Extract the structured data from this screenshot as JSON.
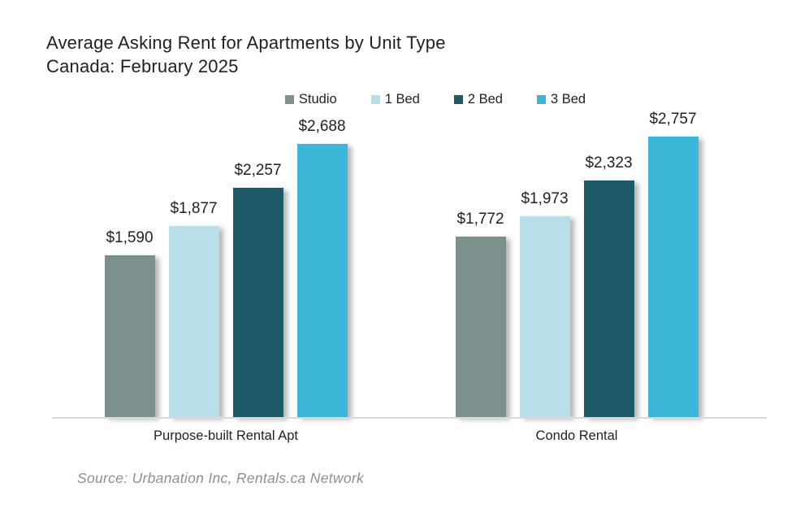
{
  "title": {
    "line1": "Average Asking Rent for Apartments by Unit Type",
    "line2": "Canada: February 2025"
  },
  "source": "Source: Urbanation Inc, Rentals.ca Network",
  "colors": {
    "studio": "#7c908e",
    "one_bed": "#b9e0e8",
    "two_bed": "#1e5968",
    "three_bed": "#3db7d8",
    "axis_line": "#d9d9d9",
    "title_text": "#221f20",
    "source_text": "#8e8e90"
  },
  "chart_data": {
    "type": "bar",
    "title": "Average Asking Rent for Apartments by Unit Type Canada: February 2025",
    "categories": [
      "Purpose-built Rental Apt",
      "Condo Rental"
    ],
    "series": [
      {
        "name": "Studio",
        "color": "#7c908e",
        "values": [
          1590,
          1772
        ],
        "labels": [
          "$1,590",
          "$1,772"
        ]
      },
      {
        "name": "1 Bed",
        "color": "#b9e0e8",
        "values": [
          1877,
          1973
        ],
        "labels": [
          "$1,877",
          "$1,973"
        ]
      },
      {
        "name": "2 Bed",
        "color": "#1e5968",
        "values": [
          2257,
          2323
        ],
        "labels": [
          "$2,257",
          "$2,323"
        ]
      },
      {
        "name": "3 Bed",
        "color": "#3db7d8",
        "values": [
          2688,
          2757
        ],
        "labels": [
          "$2,688",
          "$2,757"
        ]
      }
    ],
    "legend_position": "top",
    "ylim": [
      0,
      2757
    ],
    "grid": false,
    "data_labels": true,
    "xlabel": "",
    "ylabel": ""
  }
}
